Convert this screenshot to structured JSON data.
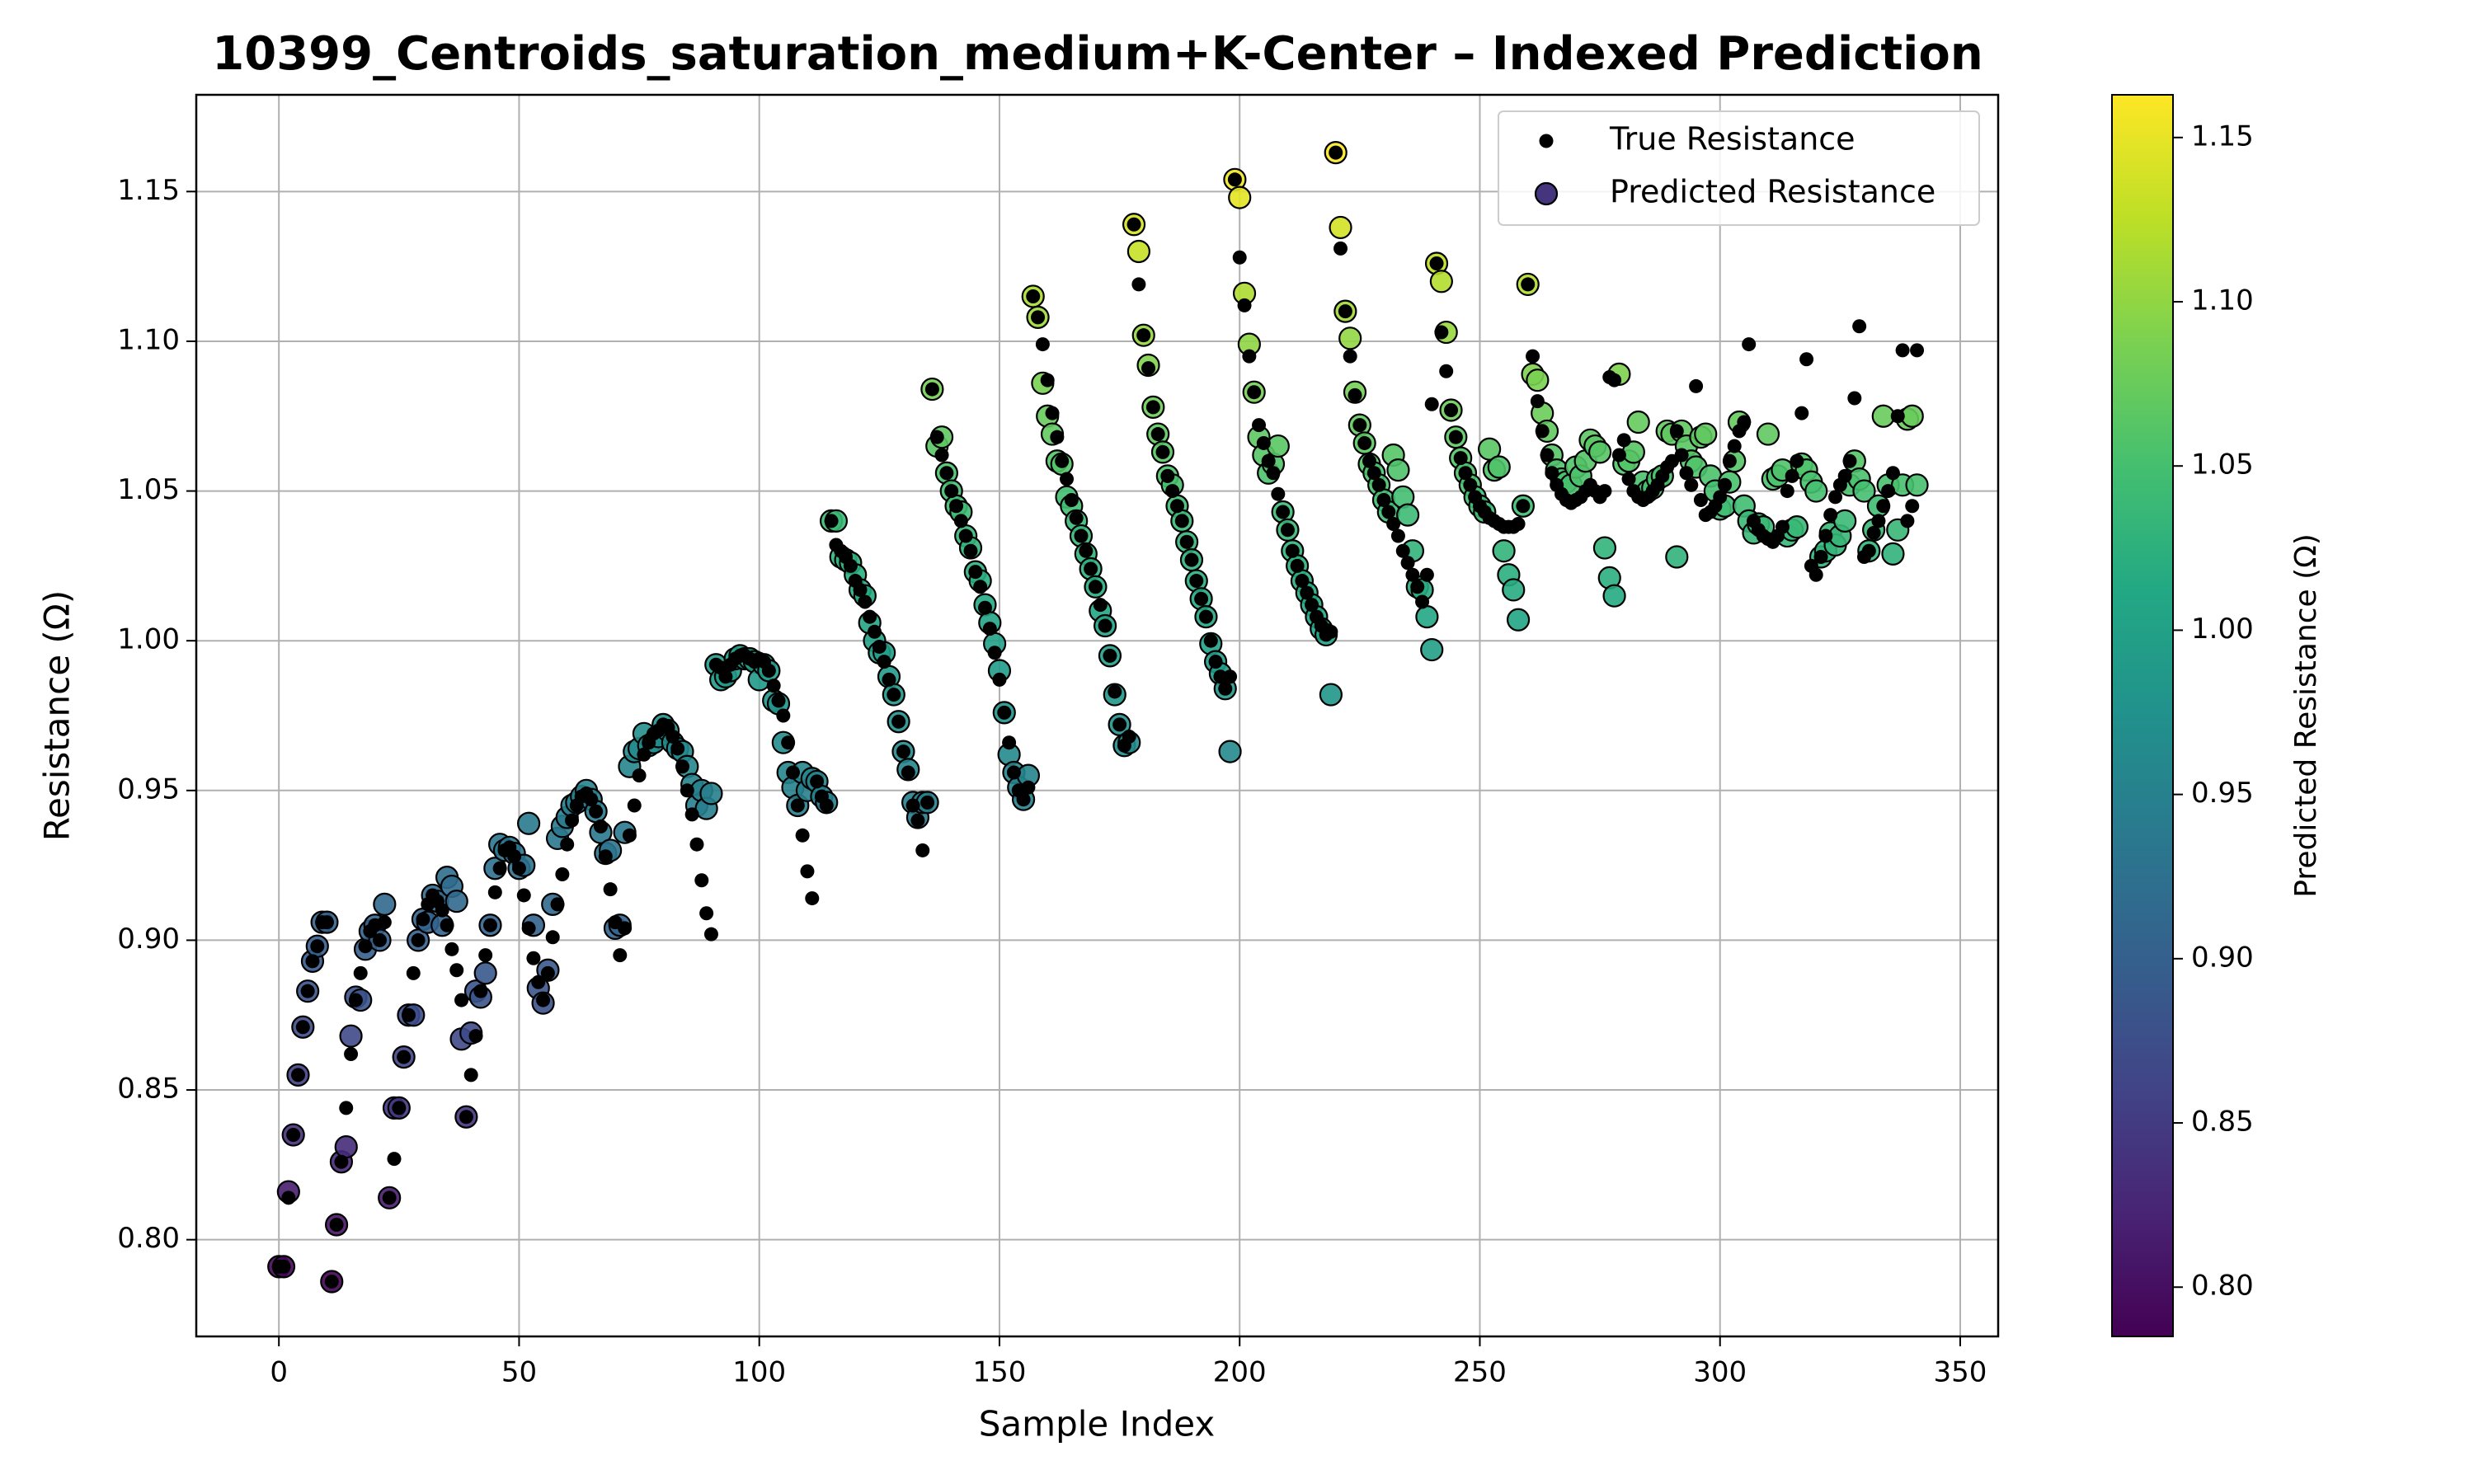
{
  "chart_data": {
    "type": "scatter",
    "title": "10399_Centroids_saturation_medium+K-Center – Indexed Prediction",
    "xlabel": "Sample Index",
    "ylabel": "Resistance (Ω)",
    "xlim": [
      -17.2,
      357.9
    ],
    "ylim": [
      0.7677,
      1.1823
    ],
    "xticks": [
      0,
      50,
      100,
      150,
      200,
      250,
      300,
      350
    ],
    "yticks": [
      {
        "value": 0.8,
        "label": "0.80"
      },
      0.85,
      {
        "value": 0.9,
        "label": "0.90"
      },
      0.95,
      {
        "value": 1.0,
        "label": "1.00"
      },
      1.05,
      {
        "value": 1.1,
        "label": "1.10"
      },
      1.15
    ],
    "grid": true,
    "legend": "upper right",
    "x": [
      0,
      1,
      2,
      3,
      4,
      5,
      6,
      7,
      8,
      9,
      10,
      11,
      12,
      13,
      14,
      15,
      16,
      17,
      18,
      19,
      20,
      21,
      22,
      23,
      24,
      25,
      26,
      27,
      28,
      29,
      30,
      31,
      32,
      33,
      34,
      35,
      36,
      37,
      38,
      39,
      40,
      41,
      42,
      43,
      44,
      45,
      46,
      47,
      48,
      49,
      50,
      51,
      52,
      53,
      54,
      55,
      56,
      57,
      58,
      59,
      60,
      61,
      62,
      63,
      64,
      65,
      66,
      67,
      68,
      69,
      70,
      71,
      72,
      73,
      74,
      75,
      76,
      77,
      78,
      79,
      80,
      81,
      82,
      83,
      84,
      85,
      86,
      87,
      88,
      89,
      90,
      91,
      92,
      93,
      94,
      95,
      96,
      97,
      98,
      99,
      100,
      101,
      102,
      103,
      104,
      105,
      106,
      107,
      108,
      109,
      110,
      111,
      112,
      113,
      114,
      115,
      116,
      117,
      118,
      119,
      120,
      121,
      122,
      123,
      124,
      125,
      126,
      127,
      128,
      129,
      130,
      131,
      132,
      133,
      134,
      135,
      136,
      137,
      138,
      139,
      140,
      141,
      142,
      143,
      144,
      145,
      146,
      147,
      148,
      149,
      150,
      151,
      152,
      153,
      154,
      155,
      156,
      157,
      158,
      159,
      160,
      161,
      162,
      163,
      164,
      165,
      166,
      167,
      168,
      169,
      170,
      171,
      172,
      173,
      174,
      175,
      176,
      177,
      178,
      179,
      180,
      181,
      182,
      183,
      184,
      185,
      186,
      187,
      188,
      189,
      190,
      191,
      192,
      193,
      194,
      195,
      196,
      197,
      198,
      199,
      200,
      201,
      202,
      203,
      204,
      205,
      206,
      207,
      208,
      209,
      210,
      211,
      212,
      213,
      214,
      215,
      216,
      217,
      218,
      219,
      220,
      221,
      222,
      223,
      224,
      225,
      226,
      227,
      228,
      229,
      230,
      231,
      232,
      233,
      234,
      235,
      236,
      237,
      238,
      239,
      240,
      241,
      242,
      243,
      244,
      245,
      246,
      247,
      248,
      249,
      250,
      251,
      252,
      253,
      254,
      255,
      256,
      257,
      258,
      259,
      260,
      261,
      262,
      263,
      264,
      265,
      266,
      267,
      268,
      269,
      270,
      271,
      272,
      273,
      274,
      275,
      276,
      277,
      278,
      279,
      280,
      281,
      282,
      283,
      284,
      285,
      286,
      287,
      288,
      289,
      290,
      291,
      292,
      293,
      294,
      295,
      296,
      297,
      298,
      299,
      300,
      301,
      302,
      303,
      304,
      305,
      306,
      307,
      308,
      309,
      310,
      311,
      312,
      313,
      314,
      315,
      316,
      317,
      318,
      319,
      320,
      321,
      322,
      323,
      324,
      325,
      326,
      327,
      328,
      329,
      330,
      331,
      332,
      333,
      334,
      335,
      336,
      337,
      338,
      339,
      340,
      341
    ],
    "series": [
      {
        "name": "True Resistance",
        "color": "#000000",
        "values": [
          0.791,
          0.791,
          0.814,
          0.835,
          0.855,
          0.871,
          0.883,
          0.893,
          0.898,
          0.906,
          0.906,
          0.786,
          0.805,
          0.826,
          0.844,
          0.862,
          0.88,
          0.889,
          0.898,
          0.903,
          0.905,
          0.9,
          0.906,
          0.814,
          0.827,
          0.844,
          0.861,
          0.875,
          0.889,
          0.9,
          0.907,
          0.912,
          0.915,
          0.913,
          0.91,
          0.905,
          0.897,
          0.89,
          0.88,
          0.841,
          0.855,
          0.868,
          0.883,
          0.895,
          0.905,
          0.916,
          0.924,
          0.93,
          0.931,
          0.928,
          0.924,
          0.915,
          0.904,
          0.894,
          0.886,
          0.88,
          0.889,
          0.901,
          0.912,
          0.922,
          0.932,
          0.94,
          0.945,
          0.948,
          0.949,
          0.947,
          0.943,
          0.938,
          0.928,
          0.917,
          0.906,
          0.895,
          0.904,
          0.935,
          0.945,
          0.955,
          0.962,
          0.966,
          0.969,
          0.97,
          0.972,
          0.971,
          0.968,
          0.964,
          0.958,
          0.95,
          0.942,
          0.932,
          0.92,
          0.909,
          0.902,
          0.992,
          0.991,
          0.988,
          0.992,
          0.994,
          0.995,
          0.995,
          0.994,
          0.993,
          0.994,
          0.993,
          0.99,
          0.985,
          0.98,
          0.975,
          0.966,
          0.956,
          0.945,
          0.935,
          0.923,
          0.914,
          0.953,
          0.948,
          0.945,
          1.04,
          1.032,
          1.03,
          1.028,
          1.025,
          1.02,
          1.017,
          1.013,
          1.008,
          1.003,
          0.998,
          0.993,
          0.987,
          0.982,
          0.973,
          0.963,
          0.956,
          0.945,
          0.94,
          0.93,
          0.946,
          1.084,
          1.068,
          1.062,
          1.056,
          1.05,
          1.045,
          1.04,
          1.035,
          1.03,
          1.023,
          1.018,
          1.011,
          1.004,
          0.996,
          0.987,
          0.976,
          0.966,
          0.956,
          0.95,
          0.947,
          0.951,
          1.115,
          1.108,
          1.099,
          1.087,
          1.076,
          1.068,
          1.06,
          1.054,
          1.047,
          1.041,
          1.035,
          1.03,
          1.024,
          1.018,
          1.012,
          1.005,
          0.995,
          0.983,
          0.972,
          0.965,
          0.968,
          1.139,
          1.119,
          1.102,
          1.091,
          1.078,
          1.069,
          1.063,
          1.055,
          1.05,
          1.045,
          1.04,
          1.033,
          1.027,
          1.02,
          1.014,
          1.008,
          1.0,
          0.993,
          0.988,
          0.984,
          0.988,
          1.154,
          1.128,
          1.112,
          1.095,
          1.083,
          1.072,
          1.066,
          1.06,
          1.056,
          1.049,
          1.043,
          1.037,
          1.03,
          1.025,
          1.02,
          1.016,
          1.012,
          1.008,
          1.005,
          1.002,
          1.003,
          1.163,
          1.131,
          1.11,
          1.095,
          1.082,
          1.072,
          1.066,
          1.06,
          1.056,
          1.052,
          1.047,
          1.043,
          1.039,
          1.035,
          1.03,
          1.026,
          1.022,
          1.018,
          1.013,
          1.022,
          1.079,
          1.126,
          1.103,
          1.09,
          1.077,
          1.068,
          1.061,
          1.056,
          1.052,
          1.048,
          1.045,
          1.043,
          1.041,
          1.04,
          1.039,
          1.038,
          1.038,
          1.038,
          1.039,
          1.045,
          1.119,
          1.095,
          1.08,
          1.07,
          1.062,
          1.056,
          1.052,
          1.049,
          1.047,
          1.046,
          1.047,
          1.048,
          1.05,
          1.052,
          1.05,
          1.048,
          1.05,
          1.088,
          1.087,
          1.062,
          1.067,
          1.054,
          1.05,
          1.048,
          1.047,
          1.048,
          1.05,
          1.052,
          1.055,
          1.058,
          1.06,
          1.07,
          1.062,
          1.056,
          1.052,
          1.085,
          1.047,
          1.042,
          1.043,
          1.045,
          1.048,
          1.052,
          1.06,
          1.065,
          1.07,
          1.073,
          1.099,
          1.04,
          1.037,
          1.035,
          1.034,
          1.033,
          1.035,
          1.038,
          1.05,
          1.055,
          1.06,
          1.076,
          1.094,
          1.025,
          1.022,
          1.028,
          1.035,
          1.042,
          1.048,
          1.052,
          1.055,
          1.06,
          1.081,
          1.105,
          1.028,
          1.03,
          1.036,
          1.04,
          1.045,
          1.05,
          1.056,
          1.075,
          1.097,
          1.04,
          1.045,
          1.097
        ]
      },
      {
        "name": "Predicted Resistance",
        "colormap": "viridis",
        "values": [
          0.791,
          0.791,
          0.816,
          0.835,
          0.855,
          0.871,
          0.883,
          0.893,
          0.898,
          0.906,
          0.906,
          0.786,
          0.805,
          0.826,
          0.831,
          0.868,
          0.881,
          0.88,
          0.897,
          0.903,
          0.905,
          0.9,
          0.912,
          0.814,
          0.844,
          0.844,
          0.861,
          0.875,
          0.875,
          0.9,
          0.907,
          0.906,
          0.915,
          0.913,
          0.905,
          0.921,
          0.918,
          0.913,
          0.867,
          0.841,
          0.869,
          0.883,
          0.881,
          0.889,
          0.905,
          0.924,
          0.932,
          0.93,
          0.931,
          0.929,
          0.924,
          0.925,
          0.939,
          0.905,
          0.884,
          0.879,
          0.89,
          0.912,
          0.934,
          0.938,
          0.941,
          0.945,
          0.946,
          0.948,
          0.95,
          0.947,
          0.943,
          0.936,
          0.929,
          0.93,
          0.904,
          0.905,
          0.936,
          0.958,
          0.963,
          0.964,
          0.969,
          0.965,
          0.966,
          0.968,
          0.972,
          0.97,
          0.966,
          0.964,
          0.963,
          0.958,
          0.952,
          0.945,
          0.95,
          0.944,
          0.949,
          0.992,
          0.987,
          0.988,
          0.99,
          0.994,
          0.995,
          0.994,
          0.994,
          0.993,
          0.987,
          0.992,
          0.99,
          0.98,
          0.979,
          0.966,
          0.956,
          0.951,
          0.945,
          0.956,
          0.95,
          0.954,
          0.953,
          0.948,
          0.946,
          1.04,
          1.04,
          1.028,
          1.027,
          1.026,
          1.022,
          1.017,
          1.015,
          1.006,
          1.0,
          0.996,
          0.996,
          0.988,
          0.982,
          0.973,
          0.963,
          0.957,
          0.946,
          0.941,
          0.946,
          0.946,
          1.084,
          1.065,
          1.068,
          1.056,
          1.05,
          1.045,
          1.043,
          1.035,
          1.031,
          1.023,
          1.02,
          1.012,
          1.006,
          0.999,
          0.99,
          0.976,
          0.962,
          0.956,
          0.951,
          0.947,
          0.955,
          1.115,
          1.108,
          1.086,
          1.075,
          1.069,
          1.06,
          1.059,
          1.048,
          1.045,
          1.04,
          1.035,
          1.029,
          1.024,
          1.018,
          1.01,
          1.005,
          0.995,
          0.982,
          0.972,
          0.965,
          0.966,
          1.139,
          1.13,
          1.102,
          1.092,
          1.078,
          1.069,
          1.063,
          1.055,
          1.052,
          1.045,
          1.04,
          1.033,
          1.027,
          1.02,
          1.014,
          1.008,
          0.999,
          0.993,
          0.989,
          0.984,
          0.963,
          1.154,
          1.148,
          1.116,
          1.099,
          1.083,
          1.068,
          1.062,
          1.056,
          1.059,
          1.065,
          1.043,
          1.037,
          1.03,
          1.025,
          1.02,
          1.016,
          1.012,
          1.008,
          1.004,
          1.002,
          0.982,
          1.163,
          1.138,
          1.11,
          1.101,
          1.083,
          1.072,
          1.066,
          1.059,
          1.056,
          1.052,
          1.047,
          1.043,
          1.062,
          1.057,
          1.048,
          1.042,
          1.03,
          1.018,
          1.017,
          1.008,
          0.997,
          1.126,
          1.12,
          1.103,
          1.077,
          1.068,
          1.061,
          1.056,
          1.052,
          1.048,
          1.045,
          1.043,
          1.064,
          1.057,
          1.058,
          1.03,
          1.022,
          1.017,
          1.007,
          1.045,
          1.119,
          1.089,
          1.087,
          1.076,
          1.07,
          1.062,
          1.057,
          1.054,
          1.053,
          1.052,
          1.058,
          1.055,
          1.06,
          1.067,
          1.065,
          1.063,
          1.031,
          1.021,
          1.015,
          1.089,
          1.059,
          1.06,
          1.063,
          1.073,
          1.053,
          1.05,
          1.051,
          1.054,
          1.055,
          1.07,
          1.069,
          1.028,
          1.07,
          1.065,
          1.06,
          1.058,
          1.068,
          1.069,
          1.055,
          1.05,
          1.044,
          1.045,
          1.053,
          1.06,
          1.073,
          1.045,
          1.04,
          1.036,
          1.039,
          1.038,
          1.069,
          1.054,
          1.055,
          1.057,
          1.035,
          1.037,
          1.038,
          1.059,
          1.057,
          1.053,
          1.05,
          1.028,
          1.03,
          1.036,
          1.032,
          1.035,
          1.04,
          1.052,
          1.06,
          1.054,
          1.05,
          1.03,
          1.037,
          1.045,
          1.075,
          1.052,
          1.029,
          1.037,
          1.052,
          1.074,
          1.075,
          1.052
        ]
      }
    ],
    "colorbar": {
      "label": "Predicted Resistance (Ω)",
      "lim": [
        0.785,
        1.163
      ],
      "ticks": [
        {
          "value": 0.8,
          "label": "0.80"
        },
        0.85,
        {
          "value": 0.9,
          "label": "0.90"
        },
        0.95,
        {
          "value": 1.0,
          "label": "1.00"
        },
        1.05,
        {
          "value": 1.1,
          "label": "1.10"
        },
        1.15
      ]
    }
  }
}
